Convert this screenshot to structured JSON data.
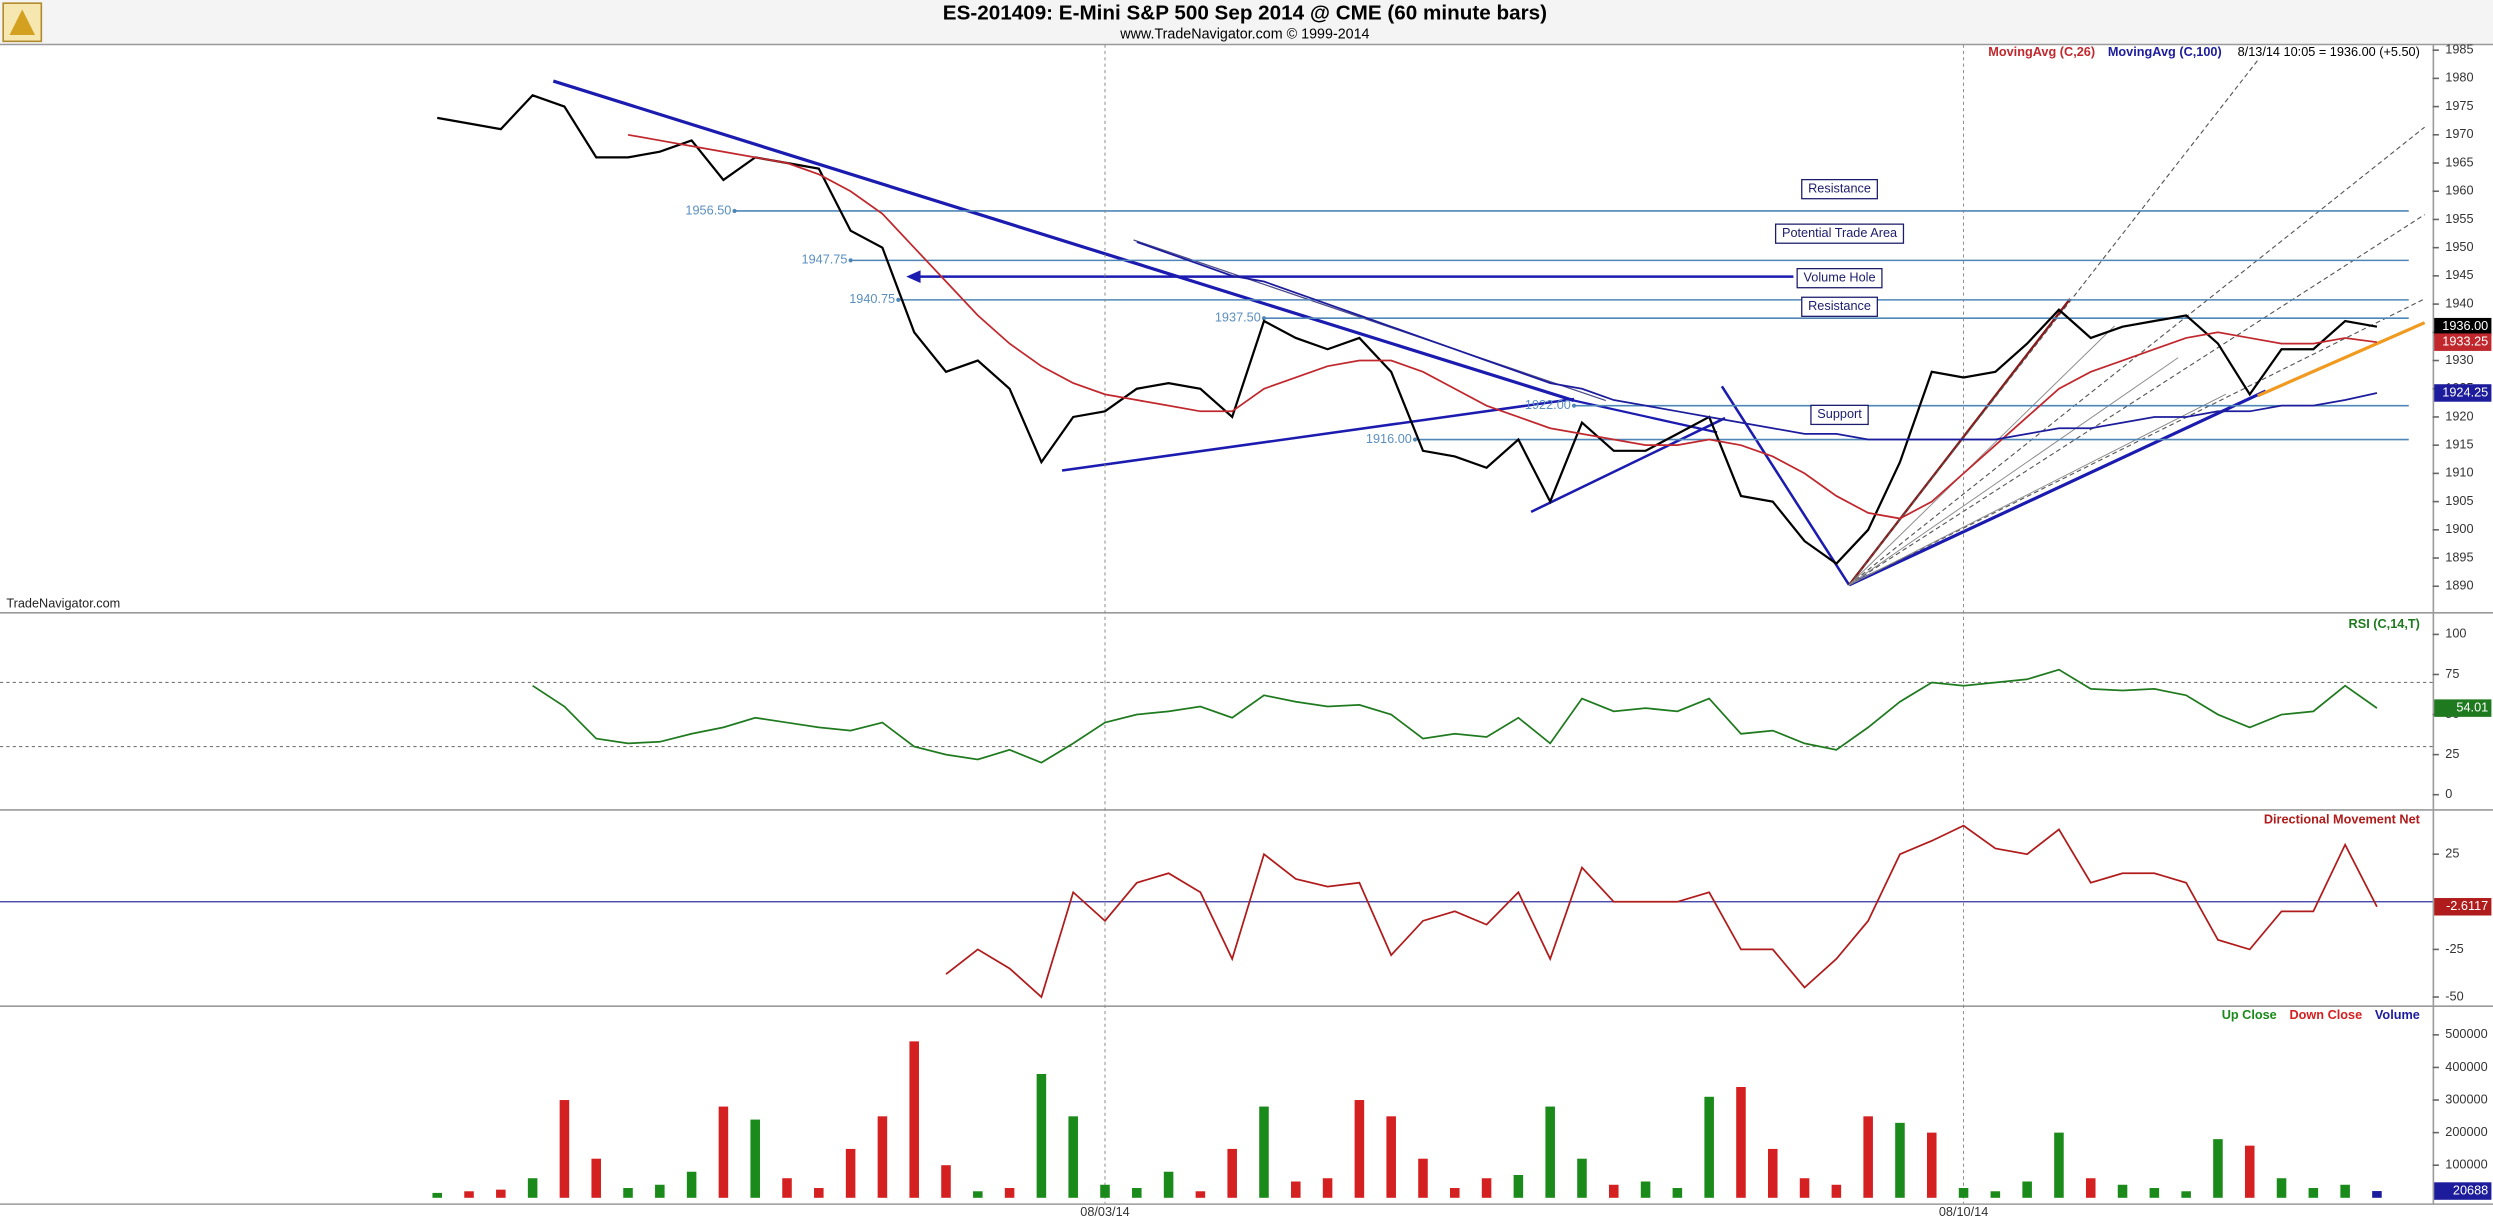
{
  "chart_data": [
    {
      "type": "line",
      "title": "ES-201409:  E-Mini S&P 500 Sep 2014 @ CME  (60 minute bars)",
      "subtitle": "www.TradeNavigator.com © 1999-2014",
      "source": "TradeNavigator.com",
      "quote": "8/13/14 10:05 = 1936.00 (+5.50)",
      "ylim": [
        1886,
        1986
      ],
      "yticks": [
        1985,
        1980,
        1975,
        1970,
        1965,
        1960,
        1955,
        1950,
        1945,
        1940,
        1935,
        1930,
        1925,
        1920,
        1915,
        1910,
        1905,
        1900,
        1895,
        1890
      ],
      "series": [
        {
          "color": "#000000",
          "last_label": "1936.00",
          "values": [
            1973,
            1972,
            1971,
            1977,
            1975,
            1966,
            1966,
            1967,
            1969,
            1962,
            1966,
            1965,
            1964,
            1953,
            1950,
            1935,
            1928,
            1930,
            1925,
            1912,
            1920,
            1921,
            1925,
            1926,
            1925,
            1920,
            1937,
            1934,
            1932,
            1934,
            1928,
            1914,
            1913,
            1911,
            1916,
            1905,
            1919,
            1914,
            1914,
            1917,
            1920,
            1906,
            1905,
            1898,
            1894,
            1900,
            1912,
            1928,
            1927,
            1928,
            1933,
            1939,
            1934,
            1936,
            1937,
            1938,
            1933,
            1924,
            1932,
            1932,
            1937,
            1936
          ]
        },
        {
          "name": "MovingAvg (C,26)",
          "color": "#c0282d",
          "last_label": "1933.25",
          "values": [
            null,
            null,
            null,
            null,
            null,
            null,
            1970,
            1969,
            1968,
            1967,
            1966,
            1965,
            1963,
            1960,
            1956,
            1950,
            1944,
            1938,
            1933,
            1929,
            1926,
            1924,
            1923,
            1922,
            1921,
            1921,
            1925,
            1927,
            1929,
            1930,
            1930,
            1928,
            1925,
            1922,
            1920,
            1918,
            1917,
            1916,
            1915,
            1915,
            1916,
            1915,
            1913,
            1910,
            1906,
            1903,
            1902,
            1905,
            1910,
            1915,
            1920,
            1925,
            1928,
            1930,
            1932,
            1934,
            1935,
            1934,
            1933,
            1933,
            1934,
            1933.25
          ]
        },
        {
          "name": "MovingAvg (C,100)",
          "color": "#1c1c9c",
          "last_label": "1924.25",
          "values": [
            null,
            null,
            null,
            null,
            null,
            null,
            null,
            null,
            null,
            null,
            null,
            null,
            null,
            null,
            null,
            null,
            null,
            null,
            null,
            null,
            null,
            null,
            1951,
            1949,
            1947,
            1945,
            1944,
            1942,
            1940,
            1938,
            1936,
            1934,
            1932,
            1930,
            1928,
            1926,
            1925,
            1923,
            1922,
            1921,
            1920,
            1919,
            1918,
            1917,
            1917,
            1916,
            1916,
            1916,
            1916,
            1916,
            1917,
            1918,
            1918,
            1919,
            1920,
            1920,
            1921,
            1921,
            1922,
            1922,
            1923,
            1924.25
          ]
        }
      ],
      "levels": [
        {
          "value": 1956.5,
          "label": "1956.50"
        },
        {
          "value": 1947.75,
          "label": "1947.75"
        },
        {
          "value": 1940.75,
          "label": "1940.75"
        },
        {
          "value": 1937.5,
          "label": "1937.50"
        },
        {
          "value": 1922,
          "label": "1922.00"
        },
        {
          "value": 1916,
          "label": "1916.00"
        }
      ],
      "annotations": [
        "Resistance",
        "Potential Trade Area",
        "Volume Hole",
        "Resistance",
        "Support"
      ]
    },
    {
      "type": "line",
      "ylim": [
        -8,
        111
      ],
      "yticks": [
        100,
        75,
        50,
        25,
        0
      ],
      "levels": [
        70,
        30
      ],
      "series": [
        {
          "name": "RSI (C,14,T)",
          "color": "#1f7a1f",
          "last_label": "54.01",
          "values": [
            null,
            null,
            null,
            68,
            55,
            35,
            32,
            33,
            38,
            42,
            48,
            45,
            42,
            40,
            45,
            30,
            25,
            22,
            28,
            20,
            32,
            45,
            50,
            52,
            55,
            48,
            62,
            58,
            55,
            56,
            50,
            35,
            38,
            36,
            48,
            32,
            60,
            52,
            54,
            52,
            60,
            38,
            40,
            32,
            28,
            42,
            58,
            70,
            68,
            70,
            72,
            78,
            66,
            65,
            66,
            62,
            50,
            42,
            50,
            52,
            68,
            54.01
          ]
        }
      ]
    },
    {
      "type": "line",
      "ylim": [
        -54,
        47
      ],
      "yticks": [
        25,
        -25,
        -50
      ],
      "reference_lines": [
        0
      ],
      "series": [
        {
          "name": "Directional Movement Net",
          "color": "#b01c1c",
          "last_label": "-2.6117",
          "values": [
            null,
            null,
            null,
            null,
            null,
            null,
            null,
            null,
            null,
            null,
            null,
            null,
            null,
            null,
            null,
            null,
            -38,
            -25,
            -35,
            -50,
            5,
            -10,
            10,
            15,
            5,
            -30,
            25,
            12,
            8,
            10,
            -28,
            -10,
            -5,
            -12,
            5,
            -30,
            18,
            0,
            0,
            0,
            5,
            -25,
            -25,
            -45,
            -30,
            -10,
            25,
            32,
            40,
            28,
            25,
            38,
            10,
            15,
            15,
            10,
            -20,
            -25,
            -5,
            -5,
            30,
            -2.6117
          ]
        }
      ]
    },
    {
      "type": "bar",
      "ylim": [
        -17000,
        583000
      ],
      "yticks": [
        500000,
        400000,
        300000,
        200000,
        100000
      ],
      "categories": [
        null,
        null,
        null,
        null,
        null,
        null,
        null,
        null,
        null,
        null,
        null,
        null,
        null,
        null,
        null,
        null,
        null,
        null,
        null,
        null,
        null,
        "08/03/14",
        null,
        null,
        null,
        null,
        null,
        null,
        null,
        null,
        null,
        null,
        null,
        null,
        null,
        null,
        null,
        null,
        null,
        null,
        null,
        null,
        null,
        null,
        null,
        null,
        null,
        null,
        "08/10/14",
        null,
        null,
        null,
        null,
        null,
        null,
        null,
        null,
        null,
        null,
        null,
        null,
        null
      ],
      "series": [
        {
          "name": "Up Close",
          "color": "#1a8a1a",
          "values": [
            15000,
            null,
            null,
            60000,
            null,
            null,
            30000,
            40000,
            80000,
            null,
            240000,
            null,
            null,
            null,
            null,
            null,
            null,
            20000,
            null,
            380000,
            250000,
            40000,
            30000,
            80000,
            null,
            null,
            280000,
            null,
            null,
            null,
            null,
            null,
            null,
            null,
            70000,
            280000,
            120000,
            null,
            50000,
            30000,
            310000,
            null,
            null,
            null,
            null,
            null,
            230000,
            null,
            30000,
            20000,
            50000,
            200000,
            null,
            40000,
            30000,
            20000,
            180000,
            null,
            60000,
            30000,
            40000,
            null
          ]
        },
        {
          "name": "Down Close",
          "color": "#d42020",
          "values": [
            null,
            20000,
            25000,
            null,
            300000,
            120000,
            null,
            null,
            null,
            280000,
            null,
            60000,
            30000,
            150000,
            250000,
            480000,
            100000,
            null,
            30000,
            null,
            null,
            null,
            null,
            null,
            20000,
            150000,
            null,
            50000,
            60000,
            300000,
            250000,
            120000,
            30000,
            60000,
            null,
            null,
            null,
            40000,
            null,
            null,
            null,
            340000,
            150000,
            60000,
            40000,
            250000,
            null,
            200000,
            null,
            null,
            null,
            null,
            60000,
            null,
            null,
            null,
            null,
            160000,
            null,
            null,
            null,
            null
          ]
        },
        {
          "name": "Volume",
          "color": "#1c1c9c",
          "last_label": "20688",
          "values": [
            null,
            null,
            null,
            null,
            null,
            null,
            null,
            null,
            null,
            null,
            null,
            null,
            null,
            null,
            null,
            null,
            null,
            null,
            null,
            null,
            null,
            null,
            null,
            null,
            null,
            null,
            null,
            null,
            null,
            null,
            null,
            null,
            null,
            null,
            null,
            null,
            null,
            null,
            null,
            null,
            null,
            null,
            null,
            null,
            null,
            null,
            null,
            null,
            null,
            null,
            null,
            null,
            null,
            null,
            null,
            null,
            null,
            null,
            null,
            null,
            null,
            20688
          ]
        }
      ]
    }
  ]
}
